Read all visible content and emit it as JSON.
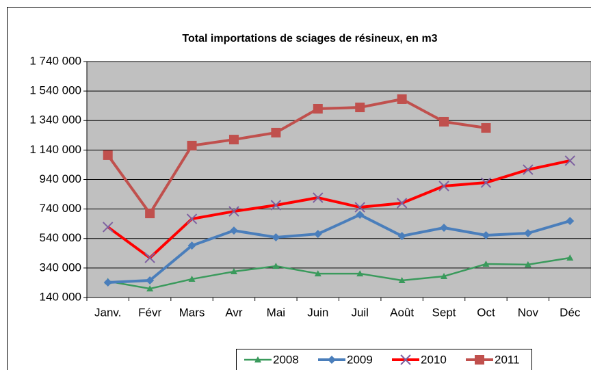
{
  "chart_data": {
    "type": "line",
    "title": "Total importations de sciages de résineux, en m3",
    "categories": [
      "Janv.",
      "Févr",
      "Mars",
      "Avr",
      "Mai",
      "Juin",
      "Juil",
      "Août",
      "Sept",
      "Oct",
      "Nov",
      "Déc"
    ],
    "series": [
      {
        "name": "2008",
        "color": "#3a9a5c",
        "marker": "triangle",
        "marker_color": "#3a9a5c",
        "line_width": 2.5,
        "values": [
          250000,
          200000,
          265000,
          316000,
          353000,
          302000,
          302000,
          256000,
          284000,
          367000,
          363000,
          409000
        ]
      },
      {
        "name": "2009",
        "color": "#4a7ebb",
        "marker": "diamond",
        "marker_color": "#4a7ebb",
        "line_width": 4,
        "values": [
          242000,
          256000,
          492000,
          594000,
          548000,
          571000,
          701000,
          557000,
          613000,
          562000,
          576000,
          659000
        ]
      },
      {
        "name": "2010",
        "color": "#ff0000",
        "marker": "x",
        "marker_color": "#7d60a0",
        "line_width": 4,
        "values": [
          618000,
          409000,
          673000,
          724000,
          766000,
          817000,
          752000,
          780000,
          896000,
          919000,
          1007000,
          1068000
        ]
      },
      {
        "name": "2011",
        "color": "#c0504d",
        "marker": "square",
        "marker_color": "#c0504d",
        "line_width": 4,
        "values": [
          1105000,
          710000,
          1170000,
          1211000,
          1258000,
          1420000,
          1429000,
          1485000,
          1332000,
          1290000,
          null,
          null
        ]
      }
    ],
    "ylim": [
      140000,
      1740000
    ],
    "yticks": [
      {
        "value": 140000,
        "label": "140 000"
      },
      {
        "value": 340000,
        "label": "340 000"
      },
      {
        "value": 540000,
        "label": "540 000"
      },
      {
        "value": 740000,
        "label": "740 000"
      },
      {
        "value": 940000,
        "label": "940 000"
      },
      {
        "value": 1140000,
        "label": "1 140 000"
      },
      {
        "value": 1340000,
        "label": "1 340 000"
      },
      {
        "value": 1540000,
        "label": "1 540 000"
      },
      {
        "value": 1740000,
        "label": "1 740 000"
      }
    ],
    "grid": true,
    "legend": "bottom",
    "plot_background": "#c0c0c0"
  }
}
